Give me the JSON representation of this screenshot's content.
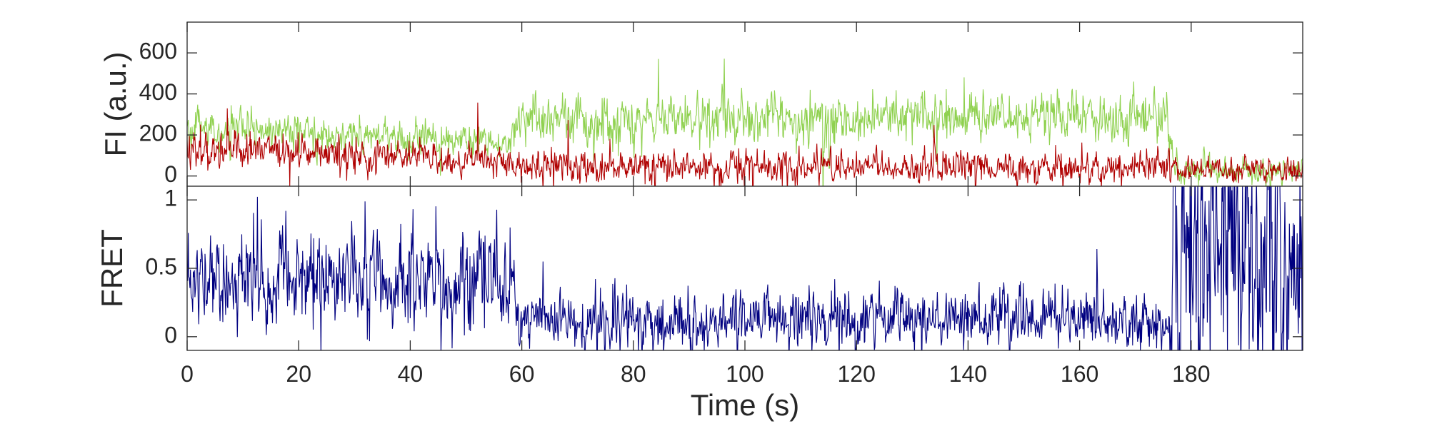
{
  "chart_data": [
    {
      "type": "line",
      "panel": "top",
      "ylabel": "FI (a.u.)",
      "xlim": [
        0,
        200
      ],
      "ylim": [
        -50,
        750
      ],
      "yticks": [
        0,
        200,
        400,
        600
      ],
      "ytick_labels": [
        "0",
        "200",
        "400",
        "600"
      ],
      "series": [
        {
          "color": "#8fd14f",
          "profile": [
            [
              0,
              230,
              55
            ],
            [
              58,
              160,
              40
            ],
            [
              59,
              280,
              70
            ],
            [
              100,
              280,
              70
            ],
            [
              150,
              300,
              70
            ],
            [
              176,
              280,
              70
            ],
            [
              177,
              30,
              35
            ],
            [
              200,
              30,
              35
            ]
          ]
        },
        {
          "color": "#b00000",
          "profile": [
            [
              0,
              140,
              55
            ],
            [
              58,
              70,
              40
            ],
            [
              59,
              45,
              45
            ],
            [
              176,
              40,
              45
            ],
            [
              177,
              30,
              35
            ],
            [
              200,
              30,
              35
            ]
          ]
        }
      ]
    },
    {
      "type": "line",
      "panel": "bottom",
      "ylabel": "FRET",
      "xlabel": "Time (s)",
      "xlim": [
        0,
        200
      ],
      "ylim": [
        -0.1,
        1.1
      ],
      "yticks": [
        0,
        0.5,
        1
      ],
      "ytick_labels": [
        "0",
        "0.5",
        "1"
      ],
      "xticks": [
        0,
        20,
        40,
        60,
        80,
        100,
        120,
        140,
        160,
        180
      ],
      "xtick_labels": [
        "0",
        "20",
        "40",
        "60",
        "80",
        "100",
        "120",
        "140",
        "160",
        "180"
      ],
      "series": [
        {
          "color": "#000080",
          "profile": [
            [
              0,
              0.42,
              0.18
            ],
            [
              58,
              0.42,
              0.22
            ],
            [
              59,
              0.12,
              0.12
            ],
            [
              176,
              0.12,
              0.12
            ],
            [
              177,
              0.55,
              0.6
            ],
            [
              200,
              0.55,
              0.6
            ]
          ]
        }
      ]
    }
  ]
}
